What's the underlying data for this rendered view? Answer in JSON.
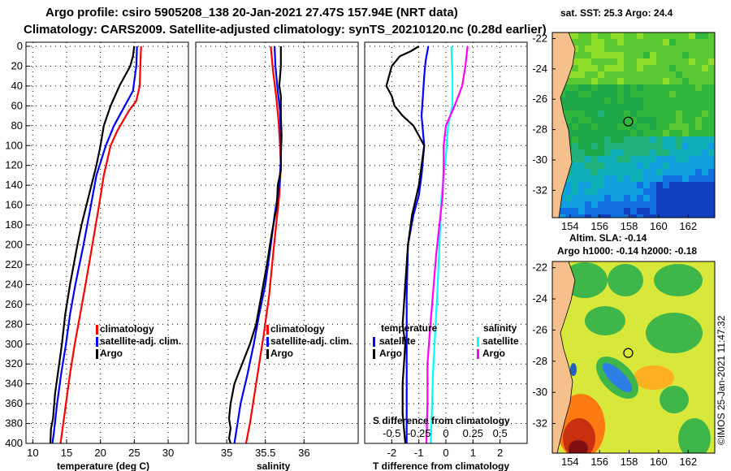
{
  "header": {
    "line1": "Argo profile: csiro 5905208_138 20-Jan-2021 27.47S 157.94E (NRT data)",
    "line2": "Climatology: CARS2009. Satellite-adjusted climatology: synTS_20210120.nc (0.28d earlier)"
  },
  "chart_data": [
    {
      "type": "line",
      "panel": "temperature",
      "xlabel": "temperature (deg C)",
      "ylabel": "",
      "xlim": [
        9,
        33
      ],
      "ylim": [
        400,
        0
      ],
      "xticks": [
        "10",
        "15",
        "20",
        "25",
        "30"
      ],
      "yticks": [
        "0",
        "20",
        "40",
        "60",
        "80",
        "100",
        "120",
        "140",
        "160",
        "180",
        "200",
        "220",
        "240",
        "260",
        "280",
        "300",
        "320",
        "340",
        "360",
        "380",
        "400"
      ],
      "grid": true,
      "legend": [
        "climatology",
        "satellite-adj. clim.",
        "Argo"
      ],
      "series": [
        {
          "name": "climatology",
          "color": "#ff0000",
          "points": [
            [
              26.0,
              0
            ],
            [
              25.9,
              20
            ],
            [
              25.8,
              40
            ],
            [
              25.3,
              55
            ],
            [
              24.2,
              65
            ],
            [
              22.5,
              85
            ],
            [
              21.5,
              100
            ],
            [
              20.5,
              130
            ],
            [
              19.8,
              160
            ],
            [
              18.8,
              200
            ],
            [
              17.8,
              240
            ],
            [
              17.0,
              270
            ],
            [
              16.2,
              300
            ],
            [
              15.5,
              330
            ],
            [
              14.9,
              360
            ],
            [
              14.3,
              390
            ],
            [
              14.1,
              400
            ]
          ]
        },
        {
          "name": "satellite-adj. clim.",
          "color": "#0000ff",
          "points": [
            [
              25.4,
              0
            ],
            [
              25.3,
              20
            ],
            [
              24.8,
              45
            ],
            [
              23.6,
              60
            ],
            [
              22.0,
              80
            ],
            [
              20.8,
              100
            ],
            [
              19.4,
              130
            ],
            [
              18.6,
              160
            ],
            [
              17.5,
              200
            ],
            [
              16.3,
              240
            ],
            [
              15.5,
              270
            ],
            [
              14.9,
              300
            ],
            [
              14.2,
              330
            ],
            [
              13.6,
              360
            ],
            [
              13.1,
              390
            ],
            [
              12.9,
              400
            ]
          ]
        },
        {
          "name": "Argo",
          "color": "#000000",
          "points": [
            [
              25.0,
              0
            ],
            [
              24.8,
              10
            ],
            [
              24.4,
              20
            ],
            [
              22.8,
              40
            ],
            [
              21.5,
              60
            ],
            [
              20.5,
              80
            ],
            [
              20.0,
              100
            ],
            [
              19.4,
              120
            ],
            [
              18.3,
              150
            ],
            [
              17.2,
              180
            ],
            [
              16.6,
              200
            ],
            [
              15.5,
              240
            ],
            [
              14.8,
              270
            ],
            [
              14.3,
              300
            ],
            [
              13.7,
              330
            ],
            [
              13.3,
              350
            ],
            [
              13.0,
              375
            ],
            [
              12.7,
              385
            ],
            [
              12.6,
              400
            ]
          ]
        }
      ]
    },
    {
      "type": "line",
      "panel": "salinity",
      "xlabel": "salinity",
      "ylabel": "",
      "xlim": [
        34.6,
        36.7
      ],
      "ylim": [
        400,
        0
      ],
      "xticks": [
        "35",
        "35.5",
        "36"
      ],
      "yticks": [],
      "grid": true,
      "legend": [
        "climatology",
        "satellite-adj. clim.",
        "Argo"
      ],
      "series": [
        {
          "name": "climatology",
          "color": "#ff0000",
          "points": [
            [
              35.57,
              0
            ],
            [
              35.6,
              25
            ],
            [
              35.64,
              50
            ],
            [
              35.67,
              75
            ],
            [
              35.69,
              100
            ],
            [
              35.7,
              120
            ],
            [
              35.68,
              150
            ],
            [
              35.64,
              180
            ],
            [
              35.6,
              210
            ],
            [
              35.55,
              250
            ],
            [
              35.48,
              290
            ],
            [
              35.42,
              320
            ],
            [
              35.36,
              350
            ],
            [
              35.3,
              380
            ],
            [
              35.25,
              400
            ]
          ]
        },
        {
          "name": "satellite-adj. clim.",
          "color": "#0000ff",
          "points": [
            [
              35.62,
              0
            ],
            [
              35.63,
              20
            ],
            [
              35.66,
              45
            ],
            [
              35.69,
              65
            ],
            [
              35.7,
              90
            ],
            [
              35.7,
              115
            ],
            [
              35.68,
              140
            ],
            [
              35.62,
              170
            ],
            [
              35.57,
              200
            ],
            [
              35.5,
              240
            ],
            [
              35.42,
              270
            ],
            [
              35.35,
              300
            ],
            [
              35.27,
              330
            ],
            [
              35.18,
              360
            ],
            [
              35.12,
              390
            ],
            [
              35.1,
              400
            ]
          ]
        },
        {
          "name": "Argo",
          "color": "#000000",
          "points": [
            [
              35.7,
              0
            ],
            [
              35.7,
              20
            ],
            [
              35.68,
              40
            ],
            [
              35.7,
              50
            ],
            [
              35.7,
              70
            ],
            [
              35.71,
              90
            ],
            [
              35.7,
              110
            ],
            [
              35.7,
              125
            ],
            [
              35.66,
              140
            ],
            [
              35.65,
              160
            ],
            [
              35.58,
              190
            ],
            [
              35.52,
              220
            ],
            [
              35.45,
              250
            ],
            [
              35.38,
              280
            ],
            [
              35.3,
              300
            ],
            [
              35.2,
              320
            ],
            [
              35.1,
              340
            ],
            [
              35.05,
              360
            ],
            [
              35.03,
              375
            ],
            [
              35.05,
              385
            ],
            [
              35.03,
              395
            ],
            [
              35.05,
              400
            ]
          ]
        }
      ]
    },
    {
      "type": "line",
      "panel": "difference",
      "xlabel": "T difference from climatology",
      "xlabel2": "S difference from climatology",
      "xlim": [
        -3,
        3
      ],
      "xlim2": [
        -0.75,
        0.75
      ],
      "ylim": [
        400,
        0
      ],
      "xticks": [
        "-2",
        "-1",
        "0",
        "1",
        "2"
      ],
      "xticks2": [
        "-0.5",
        "-0.25",
        "0",
        "0.25",
        "0.5"
      ],
      "grid": true,
      "legend_temperature_title": "temperature",
      "legend_salinity_title": "salinity",
      "legend_temperature": [
        "satellite",
        "Argo"
      ],
      "legend_salinity": [
        "satellite",
        "Argo"
      ],
      "series": [
        {
          "name": "T satellite",
          "color": "#0000ff",
          "points": [
            [
              -0.65,
              0
            ],
            [
              -0.75,
              15
            ],
            [
              -0.8,
              30
            ],
            [
              -0.85,
              50
            ],
            [
              -0.9,
              70
            ],
            [
              -0.8,
              100
            ],
            [
              -0.9,
              130
            ],
            [
              -1.0,
              150
            ],
            [
              -1.2,
              170
            ],
            [
              -1.4,
              200
            ],
            [
              -1.45,
              250
            ],
            [
              -1.45,
              300
            ],
            [
              -1.45,
              350
            ],
            [
              -1.45,
              400
            ]
          ]
        },
        {
          "name": "T Argo",
          "color": "#000000",
          "points": [
            [
              -1.0,
              0
            ],
            [
              -1.3,
              5
            ],
            [
              -1.7,
              10
            ],
            [
              -2.0,
              20
            ],
            [
              -2.1,
              30
            ],
            [
              -2.2,
              40
            ],
            [
              -2.0,
              50
            ],
            [
              -1.9,
              60
            ],
            [
              -1.6,
              70
            ],
            [
              -1.2,
              80
            ],
            [
              -1.0,
              90
            ],
            [
              -0.8,
              100
            ],
            [
              -0.9,
              120
            ],
            [
              -1.0,
              140
            ],
            [
              -1.25,
              170
            ],
            [
              -1.4,
              200
            ],
            [
              -1.5,
              240
            ],
            [
              -1.6,
              280
            ],
            [
              -1.5,
              300
            ],
            [
              -1.6,
              340
            ],
            [
              -1.6,
              370
            ],
            [
              -1.5,
              400
            ]
          ]
        },
        {
          "name": "S satellite",
          "color": "#00ffff",
          "points": [
            [
              0.05,
              0
            ],
            [
              0.06,
              30
            ],
            [
              0.06,
              60
            ],
            [
              0.02,
              80
            ],
            [
              0.0,
              110
            ],
            [
              -0.04,
              150
            ],
            [
              -0.06,
              200
            ],
            [
              -0.08,
              250
            ],
            [
              -0.1,
              290
            ],
            [
              -0.12,
              330
            ],
            [
              -0.13,
              370
            ],
            [
              -0.14,
              400
            ]
          ]
        },
        {
          "name": "S Argo",
          "color": "#ff00ff",
          "points": [
            [
              0.2,
              0
            ],
            [
              0.18,
              20
            ],
            [
              0.15,
              40
            ],
            [
              0.08,
              60
            ],
            [
              0.0,
              80
            ],
            [
              -0.02,
              100
            ],
            [
              -0.02,
              120
            ],
            [
              -0.03,
              150
            ],
            [
              -0.06,
              180
            ],
            [
              -0.09,
              210
            ],
            [
              -0.12,
              250
            ],
            [
              -0.15,
              290
            ],
            [
              -0.17,
              320
            ],
            [
              -0.17,
              360
            ],
            [
              -0.18,
              400
            ]
          ]
        }
      ]
    },
    {
      "type": "heatmap",
      "panel": "sst map",
      "title": "sat. SST: 25.3 Argo: 24.4",
      "xticks": [
        "154",
        "156",
        "158",
        "160",
        "162"
      ],
      "yticks": [
        "-22",
        "-24",
        "-26",
        "-28",
        "-30",
        "-32"
      ],
      "marker": {
        "lon": 157.94,
        "lat": -27.47
      }
    },
    {
      "type": "heatmap",
      "panel": "sla map",
      "title": "Altim. SLA: -0.14",
      "subtitle": "Argo h1000: -0.14 h2000: -0.18",
      "xticks": [
        "154",
        "156",
        "158",
        "160",
        "162"
      ],
      "yticks": [
        "-22",
        "-24",
        "-26",
        "-28",
        "-30",
        "-32"
      ],
      "marker": {
        "lon": 157.94,
        "lat": -27.47
      }
    }
  ],
  "credit": "©IMOS 25-Jan-2021 11:47:32",
  "colors": {
    "climatology": "#ff0000",
    "satellite_adj": "#0000ff",
    "argo": "#000000",
    "s_satellite": "#00ffff",
    "s_argo": "#ff00ff",
    "land": "#f5c08c"
  }
}
